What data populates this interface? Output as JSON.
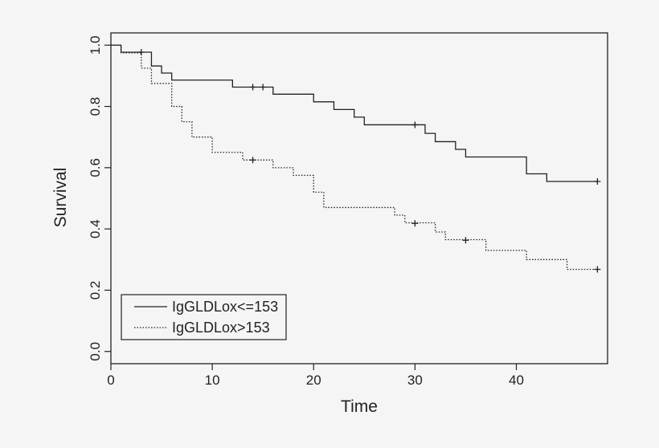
{
  "chart_data": {
    "type": "line",
    "subtype": "kaplan-meier-step",
    "title": "",
    "xlabel": "Time",
    "ylabel": "Survival",
    "xlim": [
      0,
      49
    ],
    "ylim": [
      -0.04,
      1.04
    ],
    "xticks": [
      0,
      10,
      20,
      30,
      40
    ],
    "yticks": [
      0.0,
      0.2,
      0.4,
      0.6,
      0.8,
      1.0
    ],
    "xtick_labels": [
      "0",
      "10",
      "20",
      "30",
      "40"
    ],
    "ytick_labels": [
      "0.0",
      "0.2",
      "0.4",
      "0.6",
      "0.8",
      "1.0"
    ],
    "grid": false,
    "legend_position": "bottom-left",
    "series": [
      {
        "name": "IgGLDLox<=153",
        "line_style": "solid",
        "color": "#222222",
        "steps": [
          [
            0,
            1.0
          ],
          [
            1,
            0.977
          ],
          [
            4,
            0.932
          ],
          [
            5,
            0.909
          ],
          [
            6,
            0.886
          ],
          [
            12,
            0.863
          ],
          [
            16,
            0.84
          ],
          [
            20,
            0.815
          ],
          [
            22,
            0.79
          ],
          [
            24,
            0.765
          ],
          [
            25,
            0.74
          ],
          [
            31,
            0.712
          ],
          [
            32,
            0.685
          ],
          [
            34,
            0.66
          ],
          [
            35,
            0.635
          ],
          [
            41,
            0.58
          ],
          [
            43,
            0.555
          ],
          [
            48,
            0.555
          ]
        ],
        "censored": [
          [
            3,
            0.977
          ],
          [
            14,
            0.863
          ],
          [
            15,
            0.863
          ],
          [
            30,
            0.74
          ],
          [
            48,
            0.555
          ]
        ]
      },
      {
        "name": "IgGLDLox>153",
        "line_style": "dotted",
        "color": "#222222",
        "steps": [
          [
            0,
            1.0
          ],
          [
            1,
            0.975
          ],
          [
            3,
            0.925
          ],
          [
            4,
            0.875
          ],
          [
            6,
            0.8
          ],
          [
            7,
            0.75
          ],
          [
            8,
            0.7
          ],
          [
            10,
            0.65
          ],
          [
            13,
            0.625
          ],
          [
            16,
            0.6
          ],
          [
            18,
            0.575
          ],
          [
            20,
            0.52
          ],
          [
            21,
            0.47
          ],
          [
            28,
            0.445
          ],
          [
            29,
            0.42
          ],
          [
            32,
            0.39
          ],
          [
            33,
            0.365
          ],
          [
            37,
            0.33
          ],
          [
            41,
            0.3
          ],
          [
            45,
            0.268
          ],
          [
            48,
            0.268
          ]
        ],
        "censored": [
          [
            14,
            0.625
          ],
          [
            30,
            0.418
          ],
          [
            35,
            0.363
          ],
          [
            48,
            0.268
          ]
        ]
      }
    ]
  }
}
